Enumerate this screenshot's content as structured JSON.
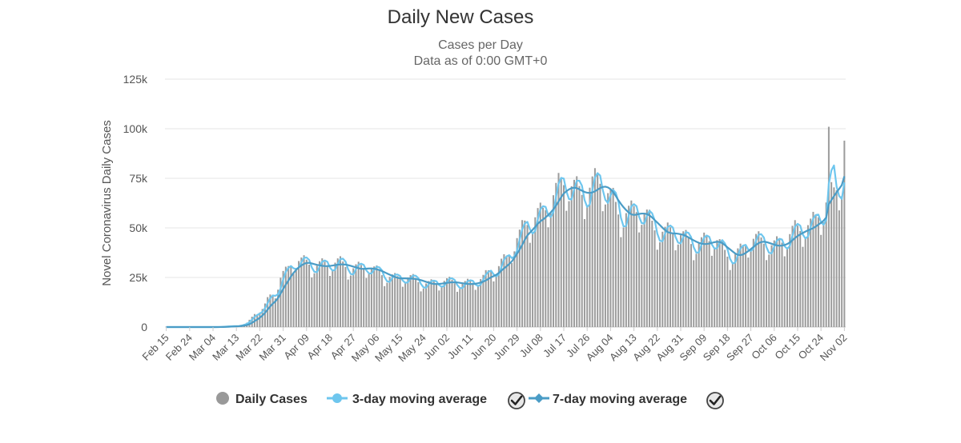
{
  "chart_data": {
    "type": "bar",
    "title": "Daily New Cases",
    "subtitle": [
      "Cases per Day",
      "Data as of 0:00 GMT+0"
    ],
    "ylabel": "Novel Coronavirus Daily Cases",
    "ylim": [
      0,
      125000
    ],
    "yticks": [
      0,
      25000,
      50000,
      75000,
      100000,
      125000
    ],
    "ytick_labels": [
      "0",
      "25k",
      "50k",
      "75k",
      "100k",
      "125k"
    ],
    "x_start": "Feb 15",
    "x_end": "Nov 02",
    "xtick_labels": [
      "Feb 15",
      "Feb 24",
      "Mar 04",
      "Mar 13",
      "Mar 22",
      "Mar 31",
      "Apr 09",
      "Apr 18",
      "Apr 27",
      "May 06",
      "May 15",
      "May 24",
      "Jun 02",
      "Jun 11",
      "Jun 20",
      "Jun 29",
      "Jul 08",
      "Jul 17",
      "Jul 26",
      "Aug 04",
      "Aug 13",
      "Aug 22",
      "Aug 31",
      "Sep 09",
      "Sep 18",
      "Sep 27",
      "Oct 06",
      "Oct 15",
      "Oct 24",
      "Nov 02"
    ],
    "series": [
      {
        "name": "Daily Cases",
        "color": "#999999"
      },
      {
        "name": "3-day moving average",
        "color": "#6ec6ee"
      },
      {
        "name": "7-day moving average",
        "color": "#4a9cc6"
      }
    ],
    "anchors": [
      [
        0,
        0
      ],
      [
        9,
        0
      ],
      [
        18,
        0
      ],
      [
        27,
        500
      ],
      [
        30,
        1500
      ],
      [
        36,
        8000
      ],
      [
        41,
        17000
      ],
      [
        45,
        26000
      ],
      [
        50,
        32000
      ],
      [
        54,
        33000
      ],
      [
        58,
        31000
      ],
      [
        63,
        30000
      ],
      [
        67,
        32000
      ],
      [
        72,
        30000
      ],
      [
        76,
        29000
      ],
      [
        81,
        27500
      ],
      [
        85,
        26000
      ],
      [
        90,
        24000
      ],
      [
        94,
        23500
      ],
      [
        99,
        22500
      ],
      [
        103,
        22000
      ],
      [
        108,
        22000
      ],
      [
        112,
        22000
      ],
      [
        117,
        22500
      ],
      [
        121,
        23000
      ],
      [
        126,
        28000
      ],
      [
        130,
        34000
      ],
      [
        135,
        43000
      ],
      [
        139,
        50000
      ],
      [
        144,
        58000
      ],
      [
        148,
        64000
      ],
      [
        153,
        69000
      ],
      [
        157,
        70000
      ],
      [
        162,
        69000
      ],
      [
        166,
        70000
      ],
      [
        171,
        65000
      ],
      [
        175,
        58000
      ],
      [
        180,
        56000
      ],
      [
        184,
        55000
      ],
      [
        189,
        50000
      ],
      [
        193,
        47000
      ],
      [
        198,
        44000
      ],
      [
        202,
        43000
      ],
      [
        207,
        43000
      ],
      [
        211,
        42000
      ],
      [
        216,
        36000
      ],
      [
        220,
        38000
      ],
      [
        225,
        42000
      ],
      [
        229,
        42000
      ],
      [
        234,
        42000
      ],
      [
        238,
        43000
      ],
      [
        243,
        47000
      ],
      [
        247,
        52000
      ],
      [
        252,
        57000
      ],
      [
        256,
        63000
      ],
      [
        261,
        75000
      ],
      [
        265,
        82000
      ],
      [
        261,
        75000
      ]
    ],
    "legend_position": "bottom",
    "legend_checkmarks": [
      false,
      true,
      true
    ],
    "grid": true
  }
}
